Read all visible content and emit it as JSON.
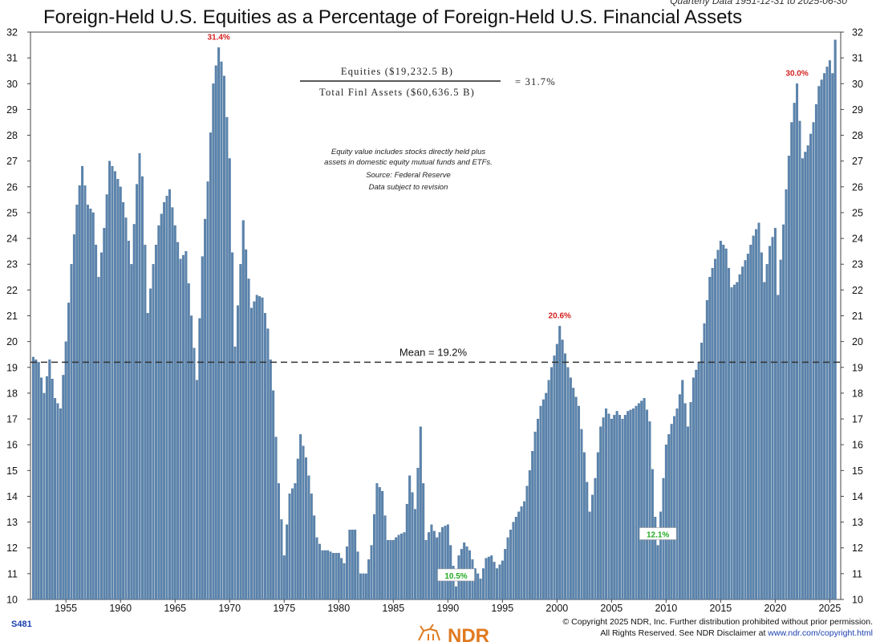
{
  "header": {
    "title": "Foreign-Held U.S. Equities as a Percentage of Foreign-Held U.S. Financial Assets",
    "subtitle": "Quarterly Data 1951-12-31 to 2025-06-30"
  },
  "formula": {
    "numerator": "Equities ($19,232.5 B)",
    "denominator": "Total Finl Assets ($60,636.5 B)",
    "result": "= 31.7%"
  },
  "note": {
    "lines": [
      "Equity value includes stocks directly held plus",
      "assets in domestic equity mutual funds and ETFs.",
      "Source: Federal Reserve",
      "Data subject to revision"
    ]
  },
  "footer": {
    "code": "S481",
    "copyright_line1": "© Copyright 2025 NDR, Inc. Further distribution prohibited without prior permission.",
    "copyright_line2": "All Rights Reserved. See NDR Disclaimer at ",
    "copyright_link": "www.ndr.com/copyright.html",
    "logo_text": "NDR"
  },
  "colors": {
    "bar": "#5b84ad",
    "bar_edge": "#3f6890",
    "mean_line": "#333333",
    "high_label": "#d42020",
    "low_label": "#22aa22"
  },
  "chart_data": {
    "type": "bar",
    "frequency": "quarterly",
    "start": "1951-12-31",
    "end": "2025-06-30",
    "ylim": [
      10,
      32
    ],
    "yticks": [
      10,
      11,
      12,
      13,
      14,
      15,
      16,
      17,
      18,
      19,
      20,
      21,
      22,
      23,
      24,
      25,
      26,
      27,
      28,
      29,
      30,
      31,
      32
    ],
    "xticks": [
      "1955",
      "1960",
      "1965",
      "1970",
      "1975",
      "1980",
      "1985",
      "1990",
      "1995",
      "2000",
      "2005",
      "2010",
      "2015",
      "2020",
      "2025"
    ],
    "mean": 19.2,
    "mean_label": "Mean = 19.2%",
    "annotations": [
      {
        "x": "1968-12-31",
        "y": 31.4,
        "text": "31.4%",
        "kind": "high"
      },
      {
        "x": "2000-03-31",
        "y": 20.6,
        "text": "20.6%",
        "kind": "high"
      },
      {
        "x": "2021-12-31",
        "y": 30.0,
        "text": "30.0%",
        "kind": "high"
      },
      {
        "x": "1990-09-30",
        "y": 10.5,
        "text": "10.5%",
        "kind": "low"
      },
      {
        "x": "2009-03-31",
        "y": 12.1,
        "text": "12.1%",
        "kind": "low"
      }
    ],
    "anchors": [
      [
        "1951-12-31",
        19.4
      ],
      [
        "1952-06-30",
        19.2
      ],
      [
        "1952-12-31",
        18.0
      ],
      [
        "1953-06-30",
        19.3
      ],
      [
        "1953-12-31",
        17.8
      ],
      [
        "1954-06-30",
        17.4
      ],
      [
        "1954-12-31",
        20.0
      ],
      [
        "1955-06-30",
        23.0
      ],
      [
        "1955-12-31",
        25.3
      ],
      [
        "1956-06-30",
        26.8
      ],
      [
        "1956-12-31",
        25.3
      ],
      [
        "1957-06-30",
        25.0
      ],
      [
        "1957-12-31",
        22.5
      ],
      [
        "1958-06-30",
        24.4
      ],
      [
        "1958-12-31",
        27.0
      ],
      [
        "1959-06-30",
        26.6
      ],
      [
        "1959-12-31",
        26.0
      ],
      [
        "1960-06-30",
        24.8
      ],
      [
        "1960-12-31",
        23.0
      ],
      [
        "1961-06-30",
        26.1
      ],
      [
        "1961-09-30",
        27.3
      ],
      [
        "1961-12-31",
        26.4
      ],
      [
        "1962-06-30",
        21.1
      ],
      [
        "1962-12-31",
        23.0
      ],
      [
        "1963-06-30",
        24.5
      ],
      [
        "1963-12-31",
        25.4
      ],
      [
        "1964-06-30",
        25.9
      ],
      [
        "1964-12-31",
        24.5
      ],
      [
        "1965-06-30",
        23.2
      ],
      [
        "1965-12-31",
        23.5
      ],
      [
        "1966-06-30",
        21.0
      ],
      [
        "1966-12-31",
        18.5
      ],
      [
        "1967-06-30",
        23.3
      ],
      [
        "1967-12-31",
        26.2
      ],
      [
        "1968-06-30",
        30.0
      ],
      [
        "1968-12-31",
        31.4
      ],
      [
        "1969-06-30",
        30.3
      ],
      [
        "1969-12-31",
        27.1
      ],
      [
        "1970-06-30",
        19.8
      ],
      [
        "1970-12-31",
        23.0
      ],
      [
        "1971-03-31",
        24.7
      ],
      [
        "1971-12-31",
        21.3
      ],
      [
        "1972-06-30",
        21.8
      ],
      [
        "1972-12-31",
        21.7
      ],
      [
        "1973-06-30",
        20.5
      ],
      [
        "1973-12-31",
        18.1
      ],
      [
        "1974-06-30",
        14.5
      ],
      [
        "1974-12-31",
        11.7
      ],
      [
        "1975-06-30",
        14.1
      ],
      [
        "1975-12-31",
        14.5
      ],
      [
        "1976-06-30",
        16.4
      ],
      [
        "1976-12-31",
        15.5
      ],
      [
        "1977-06-30",
        14.1
      ],
      [
        "1977-12-31",
        12.4
      ],
      [
        "1978-06-30",
        11.9
      ],
      [
        "1978-12-31",
        11.9
      ],
      [
        "1979-06-30",
        11.8
      ],
      [
        "1979-12-31",
        11.8
      ],
      [
        "1980-06-30",
        11.4
      ],
      [
        "1980-12-31",
        12.7
      ],
      [
        "1981-06-30",
        12.7
      ],
      [
        "1981-12-31",
        11.0
      ],
      [
        "1982-06-30",
        11.0
      ],
      [
        "1982-12-31",
        12.1
      ],
      [
        "1983-06-30",
        14.5
      ],
      [
        "1983-12-31",
        14.2
      ],
      [
        "1984-06-30",
        12.3
      ],
      [
        "1984-12-31",
        12.3
      ],
      [
        "1985-06-30",
        12.5
      ],
      [
        "1985-12-31",
        12.6
      ],
      [
        "1986-06-30",
        14.8
      ],
      [
        "1986-12-31",
        13.5
      ],
      [
        "1987-06-30",
        16.7
      ],
      [
        "1987-12-31",
        12.3
      ],
      [
        "1988-06-30",
        12.9
      ],
      [
        "1988-12-31",
        12.4
      ],
      [
        "1989-06-30",
        12.8
      ],
      [
        "1989-12-31",
        12.9
      ],
      [
        "1990-09-30",
        10.5
      ],
      [
        "1990-12-31",
        11.7
      ],
      [
        "1991-06-30",
        12.2
      ],
      [
        "1991-12-31",
        11.9
      ],
      [
        "1992-06-30",
        11.2
      ],
      [
        "1992-12-31",
        10.8
      ],
      [
        "1993-06-30",
        11.6
      ],
      [
        "1993-12-31",
        11.7
      ],
      [
        "1994-06-30",
        11.2
      ],
      [
        "1994-12-31",
        11.5
      ],
      [
        "1995-06-30",
        12.4
      ],
      [
        "1995-12-31",
        13.0
      ],
      [
        "1996-06-30",
        13.4
      ],
      [
        "1996-12-31",
        13.8
      ],
      [
        "1997-06-30",
        15.0
      ],
      [
        "1997-12-31",
        16.5
      ],
      [
        "1998-06-30",
        17.5
      ],
      [
        "1998-12-31",
        18.0
      ],
      [
        "1999-06-30",
        19.0
      ],
      [
        "1999-12-31",
        19.9
      ],
      [
        "2000-03-31",
        20.6
      ],
      [
        "2000-12-31",
        19.0
      ],
      [
        "2001-06-30",
        18.2
      ],
      [
        "2001-12-31",
        17.5
      ],
      [
        "2002-06-30",
        15.7
      ],
      [
        "2002-12-31",
        13.4
      ],
      [
        "2003-06-30",
        14.7
      ],
      [
        "2003-12-31",
        16.7
      ],
      [
        "2004-06-30",
        17.4
      ],
      [
        "2004-12-31",
        17.0
      ],
      [
        "2005-06-30",
        17.3
      ],
      [
        "2005-12-31",
        17.0
      ],
      [
        "2006-06-30",
        17.3
      ],
      [
        "2006-12-31",
        17.4
      ],
      [
        "2007-06-30",
        17.6
      ],
      [
        "2007-12-31",
        17.8
      ],
      [
        "2008-06-30",
        16.9
      ],
      [
        "2008-12-31",
        13.2
      ],
      [
        "2009-03-31",
        12.1
      ],
      [
        "2009-12-31",
        16.0
      ],
      [
        "2010-06-30",
        16.8
      ],
      [
        "2010-12-31",
        17.4
      ],
      [
        "2011-06-30",
        18.5
      ],
      [
        "2011-12-31",
        16.7
      ],
      [
        "2012-06-30",
        18.6
      ],
      [
        "2012-12-31",
        19.2
      ],
      [
        "2013-06-30",
        20.7
      ],
      [
        "2013-12-31",
        22.5
      ],
      [
        "2014-06-30",
        23.2
      ],
      [
        "2014-12-31",
        23.9
      ],
      [
        "2015-06-30",
        23.6
      ],
      [
        "2015-12-31",
        22.1
      ],
      [
        "2016-06-30",
        22.3
      ],
      [
        "2016-12-31",
        22.9
      ],
      [
        "2017-06-30",
        23.4
      ],
      [
        "2017-12-31",
        24.1
      ],
      [
        "2018-06-30",
        24.6
      ],
      [
        "2018-12-31",
        22.3
      ],
      [
        "2019-06-30",
        23.7
      ],
      [
        "2019-12-31",
        24.4
      ],
      [
        "2020-03-31",
        21.8
      ],
      [
        "2020-12-31",
        25.9
      ],
      [
        "2021-06-30",
        28.5
      ],
      [
        "2021-12-31",
        30.0
      ],
      [
        "2022-06-30",
        27.1
      ],
      [
        "2022-12-31",
        27.6
      ],
      [
        "2023-06-30",
        28.5
      ],
      [
        "2023-12-31",
        29.9
      ],
      [
        "2024-06-30",
        30.4
      ],
      [
        "2024-12-31",
        30.9
      ],
      [
        "2025-03-31",
        30.4
      ],
      [
        "2025-06-30",
        31.7
      ]
    ]
  }
}
